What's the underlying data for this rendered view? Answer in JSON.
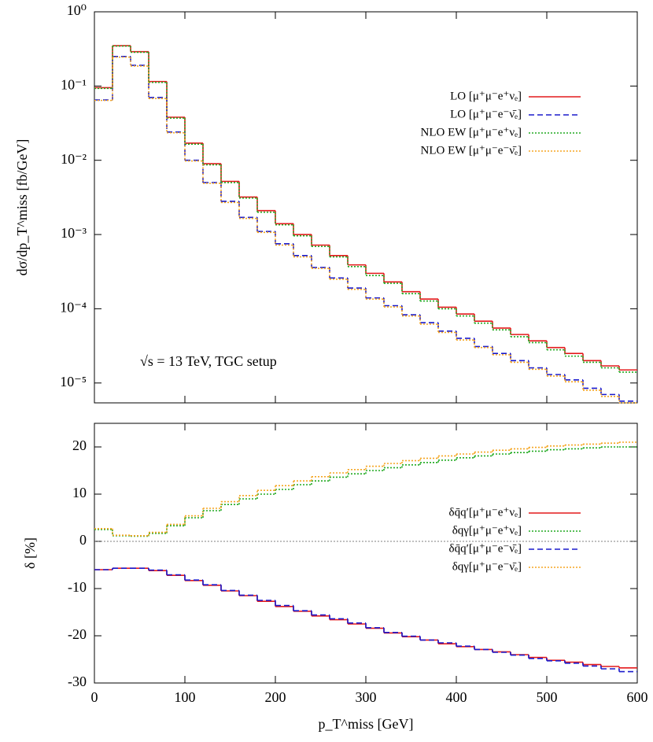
{
  "chart_data": [
    {
      "type": "histogram",
      "log_y": true,
      "legend": "upper right",
      "ylabel": "dσ/dp_T^miss [fb/GeV]",
      "annotation": "√s = 13 TeV, TGC setup",
      "bins": [
        0,
        20,
        40,
        60,
        80,
        100,
        120,
        140,
        160,
        180,
        200,
        220,
        240,
        260,
        280,
        300,
        320,
        340,
        360,
        380,
        400,
        420,
        440,
        460,
        480,
        500,
        520,
        540,
        560,
        580,
        600
      ],
      "xlim": [
        0,
        600
      ],
      "xticks": [
        0,
        100,
        200,
        300,
        400,
        500,
        600
      ],
      "ylim": [
        5.4e-06,
        1
      ],
      "yticks": [
        {
          "value": 1,
          "label": "10⁰"
        },
        {
          "value": 0.1,
          "label": "10⁻¹"
        },
        {
          "value": 0.01,
          "label": "10⁻²"
        },
        {
          "value": 0.001,
          "label": "10⁻³"
        },
        {
          "value": 0.0001,
          "label": "10⁻⁴"
        },
        {
          "value": 1e-05,
          "label": "10⁻⁵"
        }
      ],
      "series": [
        {
          "name": "LO  [μ⁺μ⁻e⁺νₑ]",
          "color": "#e41a1c",
          "dash": "solid",
          "values": [
            0.095,
            0.35,
            0.29,
            0.115,
            0.038,
            0.017,
            0.009,
            0.0052,
            0.0032,
            0.0021,
            0.0014,
            0.001,
            0.00072,
            0.00052,
            0.00039,
            0.0003,
            0.00023,
            0.00017,
            0.000135,
            0.000105,
            8.5e-05,
            6.8e-05,
            5.5e-05,
            4.5e-05,
            3.7e-05,
            3e-05,
            2.5e-05,
            2e-05,
            1.7e-05,
            1.5e-05
          ]
        },
        {
          "name": "LO  [μ⁺μ⁻e⁻ν̄ₑ]",
          "color": "#1a1acc",
          "dash": "dashed",
          "values": [
            0.065,
            0.25,
            0.19,
            0.07,
            0.024,
            0.01,
            0.005,
            0.0028,
            0.0017,
            0.0011,
            0.00075,
            0.00052,
            0.00036,
            0.00026,
            0.00019,
            0.00014,
            0.00011,
            8.3e-05,
            6.5e-05,
            5e-05,
            4e-05,
            3.1e-05,
            2.5e-05,
            2e-05,
            1.6e-05,
            1.3e-05,
            1.1e-05,
            8.5e-06,
            7e-06,
            5.7e-06
          ]
        },
        {
          "name": "NLO EW  [μ⁺μ⁻e⁺νₑ]",
          "color": "#22aa22",
          "dash": "dotted",
          "values": [
            0.093,
            0.345,
            0.285,
            0.112,
            0.037,
            0.0165,
            0.0087,
            0.005,
            0.0031,
            0.002,
            0.00135,
            0.00096,
            0.00069,
            0.0005,
            0.00037,
            0.00028,
            0.00022,
            0.00016,
            0.000127,
            0.0001,
            8e-05,
            6.4e-05,
            5.2e-05,
            4.2e-05,
            3.5e-05,
            2.8e-05,
            2.3e-05,
            1.9e-05,
            1.6e-05,
            1.4e-05
          ]
        },
        {
          "name": "NLO EW  [μ⁺μ⁻e⁻ν̄ₑ]",
          "color": "#f5a623",
          "dash": "dotted",
          "values": [
            0.064,
            0.245,
            0.186,
            0.068,
            0.0235,
            0.0098,
            0.0049,
            0.0027,
            0.00165,
            0.00107,
            0.00072,
            0.0005,
            0.00035,
            0.00025,
            0.000183,
            0.000135,
            0.000106,
            8e-05,
            6.2e-05,
            4.8e-05,
            3.8e-05,
            3e-05,
            2.4e-05,
            1.9e-05,
            1.53e-05,
            1.24e-05,
            1.04e-05,
            8e-06,
            6.6e-06,
            5.4e-06
          ]
        }
      ]
    },
    {
      "type": "histogram",
      "log_y": false,
      "legend": "center right",
      "xlabel": "p_T^miss [GeV]",
      "ylabel": "δ [%]",
      "bins": [
        0,
        20,
        40,
        60,
        80,
        100,
        120,
        140,
        160,
        180,
        200,
        220,
        240,
        260,
        280,
        300,
        320,
        340,
        360,
        380,
        400,
        420,
        440,
        460,
        480,
        500,
        520,
        540,
        560,
        580,
        600
      ],
      "xlim": [
        0,
        600
      ],
      "xticks": [
        0,
        100,
        200,
        300,
        400,
        500,
        600
      ],
      "ylim": [
        -30,
        25
      ],
      "yticks": [
        -30,
        -20,
        -10,
        0,
        10,
        20
      ],
      "series": [
        {
          "name": "δq̄q′[μ⁺μ⁻e⁺νₑ]",
          "color": "#e41a1c",
          "dash": "solid",
          "values": [
            -6,
            -5.7,
            -5.7,
            -6.2,
            -7.2,
            -8.3,
            -9.3,
            -10.5,
            -11.5,
            -12.7,
            -13.8,
            -14.8,
            -15.8,
            -16.6,
            -17.5,
            -18.4,
            -19.4,
            -20.2,
            -20.9,
            -21.7,
            -22.3,
            -22.9,
            -23.4,
            -24,
            -24.6,
            -25.2,
            -25.6,
            -26.1,
            -26.5,
            -26.8
          ]
        },
        {
          "name": "δqγ[μ⁺μ⁻e⁺νₑ]",
          "color": "#22aa22",
          "dash": "dotted",
          "values": [
            2.5,
            1.2,
            1.1,
            1.7,
            3.3,
            5,
            6.5,
            7.8,
            9,
            10,
            11,
            12,
            12.8,
            13.6,
            14.3,
            15,
            15.6,
            16.2,
            16.7,
            17.2,
            17.7,
            18.1,
            18.5,
            18.8,
            19.1,
            19.4,
            19.6,
            19.8,
            20,
            20
          ]
        },
        {
          "name": "δq̄q′[μ⁺μ⁻e⁻ν̄ₑ]",
          "color": "#1a1acc",
          "dash": "dashed",
          "values": [
            -6,
            -5.7,
            -5.7,
            -6.1,
            -7.1,
            -8.2,
            -9.2,
            -10.4,
            -11.4,
            -12.5,
            -13.6,
            -14.7,
            -15.6,
            -16.4,
            -17.3,
            -18.3,
            -19.3,
            -20.1,
            -20.9,
            -21.5,
            -22.2,
            -22.9,
            -23.5,
            -24.1,
            -24.8,
            -25.3,
            -25.8,
            -26.4,
            -27,
            -27.6
          ]
        },
        {
          "name": "δqγ[μ⁺μ⁻e⁻ν̄ₑ]",
          "color": "#f5a623",
          "dash": "dotted",
          "values": [
            2.7,
            1.3,
            1.2,
            1.9,
            3.6,
            5.4,
            7,
            8.4,
            9.7,
            10.8,
            11.8,
            12.8,
            13.7,
            14.5,
            15.2,
            15.9,
            16.5,
            17.1,
            17.6,
            18.1,
            18.5,
            18.9,
            19.3,
            19.6,
            19.9,
            20.2,
            20.4,
            20.6,
            20.8,
            21
          ]
        }
      ]
    }
  ]
}
